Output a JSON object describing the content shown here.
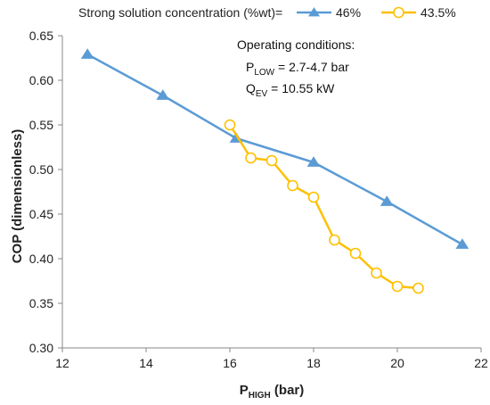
{
  "chart_data": {
    "type": "line",
    "xlabel": {
      "base": "P",
      "sub": "HIGH",
      "suffix": " (bar)"
    },
    "ylabel": "COP (dimensionless)",
    "xlim": [
      12,
      22
    ],
    "ylim": [
      0.3,
      0.65
    ],
    "xticks": [
      12,
      14,
      16,
      18,
      20,
      22
    ],
    "xtick_labels": [
      "12",
      "14",
      "16",
      "18",
      "20",
      "22"
    ],
    "yticks": [
      0.3,
      0.35,
      0.4,
      0.45,
      0.5,
      0.55,
      0.6,
      0.65
    ],
    "ytick_labels": [
      "0.30",
      "0.35",
      "0.40",
      "0.45",
      "0.50",
      "0.55",
      "0.60",
      "0.65"
    ],
    "grid": false,
    "legend": {
      "title": "Strong solution concentration (%wt)=",
      "placement": "top"
    },
    "annotations": {
      "line1": "Operating conditions:",
      "line2": {
        "base": "P",
        "sub": "LOW",
        "suffix": " = 2.7-4.7 bar"
      },
      "line3": {
        "base": "Q",
        "sub": "EV",
        "suffix": " = 10.55 kW"
      }
    },
    "series": [
      {
        "name": "46%",
        "color": "#5B9BD5",
        "marker": "triangle",
        "x": [
          12.6,
          14.4,
          16.15,
          18.0,
          19.75,
          21.55
        ],
        "y": [
          0.629,
          0.583,
          0.535,
          0.508,
          0.464,
          0.416
        ]
      },
      {
        "name": "43.5%",
        "color": "#FFC000",
        "marker": "circle-open",
        "x": [
          16.0,
          16.5,
          17.0,
          17.5,
          18.0,
          18.5,
          19.0,
          19.5,
          20.0,
          20.5
        ],
        "y": [
          0.55,
          0.513,
          0.51,
          0.482,
          0.469,
          0.421,
          0.406,
          0.384,
          0.369,
          0.367
        ]
      }
    ]
  }
}
